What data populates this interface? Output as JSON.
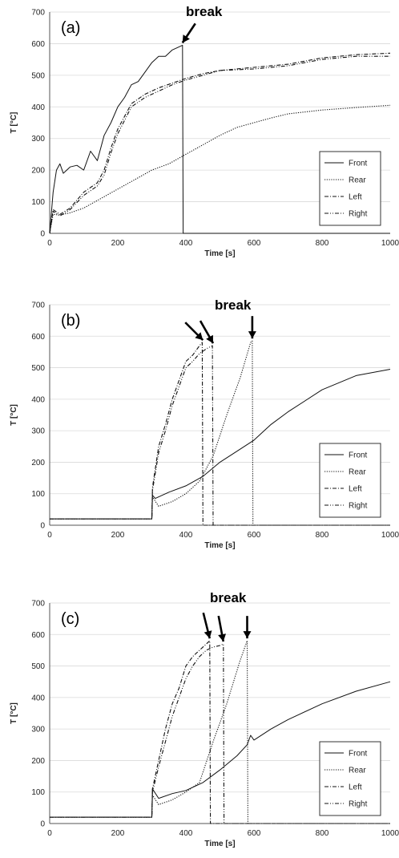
{
  "chart_data": [
    {
      "type": "line",
      "panel_label": "(a)",
      "annotation": "break",
      "xlabel": "Time [s]",
      "ylabel": "T [°C]",
      "xlim": [
        0,
        1000
      ],
      "ylim": [
        0,
        700
      ],
      "xticks": [
        0,
        200,
        400,
        600,
        800,
        1000
      ],
      "yticks": [
        0,
        100,
        200,
        300,
        400,
        500,
        600,
        700
      ],
      "grid": "horizontal",
      "legend_position": "bottom-right",
      "break_times": [
        390
      ],
      "series": [
        {
          "name": "Front",
          "style": "solid",
          "x": [
            0,
            10,
            20,
            30,
            40,
            60,
            80,
            100,
            120,
            140,
            160,
            180,
            200,
            220,
            240,
            260,
            280,
            300,
            320,
            340,
            360,
            380,
            390,
            392,
            1000
          ],
          "y": [
            0,
            130,
            200,
            220,
            190,
            210,
            215,
            200,
            260,
            230,
            310,
            350,
            400,
            430,
            470,
            480,
            510,
            540,
            560,
            560,
            580,
            590,
            595,
            0,
            0
          ]
        },
        {
          "name": "Rear",
          "style": "dotted",
          "x": [
            0,
            10,
            30,
            60,
            100,
            150,
            200,
            250,
            300,
            350,
            400,
            450,
            500,
            550,
            600,
            650,
            700,
            800,
            900,
            1000
          ],
          "y": [
            0,
            60,
            58,
            65,
            80,
            110,
            140,
            170,
            200,
            220,
            250,
            280,
            310,
            335,
            350,
            365,
            378,
            390,
            398,
            405
          ]
        },
        {
          "name": "Left",
          "style": "dashdot",
          "x": [
            0,
            10,
            30,
            60,
            100,
            140,
            160,
            180,
            200,
            240,
            280,
            320,
            360,
            400,
            450,
            500,
            600,
            700,
            800,
            900,
            1000
          ],
          "y": [
            0,
            75,
            60,
            80,
            130,
            160,
            200,
            270,
            330,
            410,
            440,
            460,
            475,
            490,
            505,
            515,
            525,
            535,
            555,
            565,
            570
          ]
        },
        {
          "name": "Right",
          "style": "dashdotdot",
          "x": [
            0,
            10,
            30,
            60,
            100,
            140,
            160,
            180,
            200,
            240,
            280,
            320,
            360,
            400,
            450,
            500,
            600,
            700,
            800,
            900,
            1000
          ],
          "y": [
            0,
            70,
            55,
            75,
            120,
            150,
            185,
            255,
            315,
            400,
            430,
            450,
            470,
            485,
            500,
            515,
            520,
            530,
            550,
            560,
            560
          ]
        }
      ]
    },
    {
      "type": "line",
      "panel_label": "(b)",
      "annotation": "break",
      "xlabel": "Time [s]",
      "ylabel": "T [°C]",
      "xlim": [
        0,
        1000
      ],
      "ylim": [
        0,
        700
      ],
      "xticks": [
        0,
        200,
        400,
        600,
        800,
        1000
      ],
      "yticks": [
        0,
        100,
        200,
        300,
        400,
        500,
        600,
        700
      ],
      "grid": "horizontal",
      "legend_position": "bottom-right",
      "break_times": [
        450,
        480,
        595
      ],
      "series": [
        {
          "name": "Front",
          "style": "solid",
          "x": [
            0,
            300,
            302,
            310,
            350,
            400,
            450,
            500,
            550,
            600,
            650,
            700,
            800,
            900,
            1000
          ],
          "y": [
            20,
            20,
            95,
            85,
            105,
            125,
            155,
            200,
            235,
            270,
            320,
            360,
            430,
            475,
            495
          ]
        },
        {
          "name": "Rear",
          "style": "dotted",
          "x": [
            0,
            300,
            302,
            320,
            360,
            400,
            440,
            480,
            520,
            560,
            590,
            595,
            597,
            1000
          ],
          "y": [
            20,
            20,
            90,
            60,
            75,
            100,
            140,
            220,
            350,
            470,
            580,
            585,
            0,
            0
          ]
        },
        {
          "name": "Left",
          "style": "dashdot",
          "x": [
            0,
            300,
            302,
            320,
            340,
            360,
            380,
            400,
            420,
            440,
            448,
            450,
            1000
          ],
          "y": [
            20,
            20,
            120,
            250,
            320,
            400,
            460,
            520,
            540,
            570,
            580,
            0,
            0
          ]
        },
        {
          "name": "Right",
          "style": "dashdotdot",
          "x": [
            0,
            300,
            302,
            320,
            340,
            360,
            380,
            400,
            420,
            440,
            460,
            478,
            480,
            1000
          ],
          "y": [
            20,
            20,
            110,
            230,
            300,
            380,
            440,
            500,
            520,
            545,
            560,
            570,
            0,
            0
          ]
        }
      ]
    },
    {
      "type": "line",
      "panel_label": "(c)",
      "annotation": "break",
      "xlabel": "Time [s]",
      "ylabel": "T [°C]",
      "xlim": [
        0,
        1000
      ],
      "ylim": [
        0,
        700
      ],
      "xticks": [
        0,
        200,
        400,
        600,
        800,
        1000
      ],
      "yticks": [
        0,
        100,
        200,
        300,
        400,
        500,
        600,
        700
      ],
      "grid": "horizontal",
      "legend_position": "bottom-right",
      "break_times": [
        470,
        510,
        580
      ],
      "series": [
        {
          "name": "Front",
          "style": "solid",
          "x": [
            0,
            300,
            302,
            320,
            360,
            400,
            450,
            500,
            550,
            580,
            590,
            600,
            650,
            700,
            800,
            900,
            1000
          ],
          "y": [
            20,
            20,
            110,
            80,
            95,
            105,
            130,
            170,
            215,
            250,
            280,
            265,
            300,
            330,
            380,
            420,
            450
          ]
        },
        {
          "name": "Rear",
          "style": "dotted",
          "x": [
            0,
            300,
            302,
            320,
            360,
            400,
            440,
            480,
            520,
            560,
            580,
            582,
            1000
          ],
          "y": [
            20,
            20,
            90,
            60,
            75,
            100,
            130,
            260,
            380,
            520,
            580,
            0,
            0
          ]
        },
        {
          "name": "Left",
          "style": "dashdot",
          "x": [
            0,
            300,
            302,
            320,
            340,
            360,
            380,
            400,
            420,
            440,
            460,
            470,
            472,
            1000
          ],
          "y": [
            20,
            20,
            110,
            200,
            300,
            380,
            430,
            500,
            530,
            550,
            570,
            580,
            0,
            0
          ]
        },
        {
          "name": "Right",
          "style": "dashdotdot",
          "x": [
            0,
            300,
            302,
            320,
            340,
            360,
            380,
            400,
            420,
            440,
            460,
            480,
            500,
            510,
            512,
            1000
          ],
          "y": [
            20,
            20,
            100,
            180,
            260,
            340,
            400,
            460,
            500,
            530,
            550,
            560,
            565,
            570,
            0,
            0
          ]
        }
      ]
    }
  ]
}
